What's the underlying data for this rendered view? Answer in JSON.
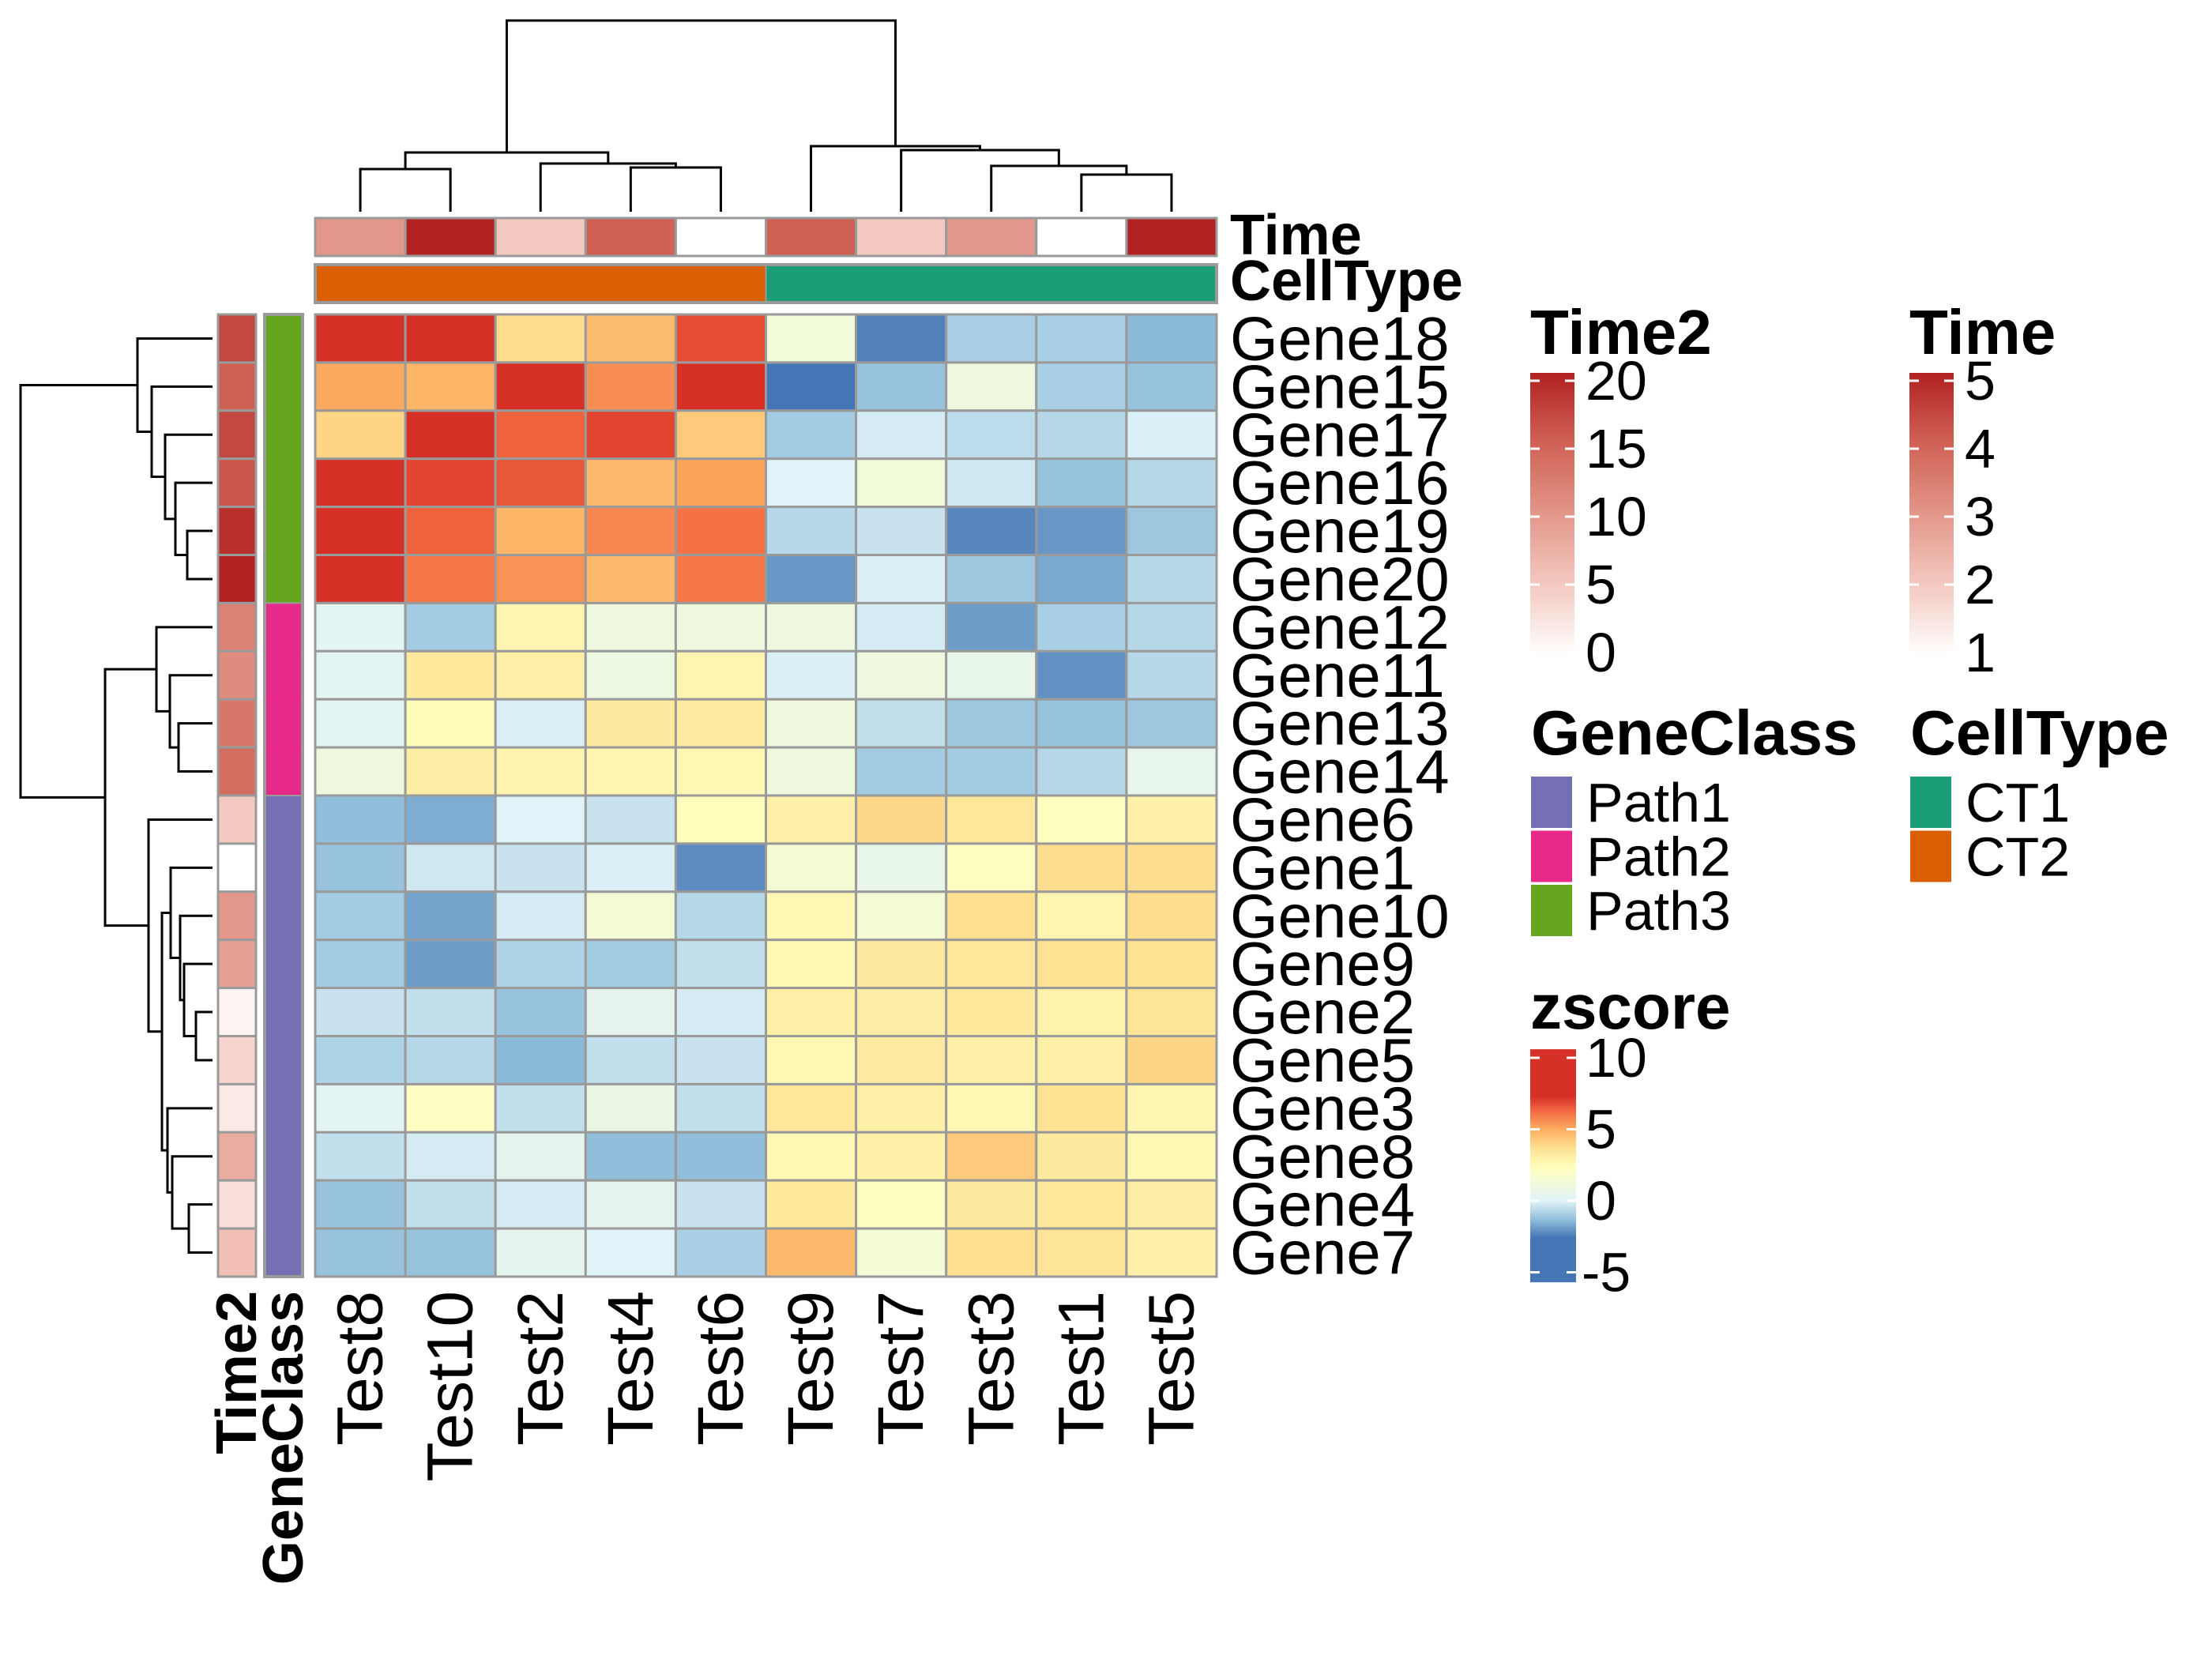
{
  "chart_data": {
    "type": "heatmap",
    "rows": [
      "Gene18",
      "Gene15",
      "Gene17",
      "Gene16",
      "Gene19",
      "Gene20",
      "Gene12",
      "Gene11",
      "Gene13",
      "Gene14",
      "Gene6",
      "Gene1",
      "Gene10",
      "Gene9",
      "Gene2",
      "Gene5",
      "Gene3",
      "Gene8",
      "Gene4",
      "Gene7"
    ],
    "columns": [
      "Test8",
      "Test10",
      "Test2",
      "Test4",
      "Test6",
      "Test9",
      "Test7",
      "Test3",
      "Test1",
      "Test5"
    ],
    "values": [
      [
        9,
        9,
        3.75,
        4.6,
        6.8,
        1.25,
        -2.4,
        -0.9,
        -0.9,
        -1.4
      ],
      [
        5.1,
        4.8,
        9,
        5.6,
        7.4,
        -3.5,
        -1.2,
        1,
        -0.9,
        -1.2
      ],
      [
        4,
        7.5,
        6.4,
        6.9,
        4.3,
        -1,
        -0.2,
        -0.6,
        -0.7,
        -0.1
      ],
      [
        8.2,
        6.9,
        6.6,
        4.7,
        5.2,
        0,
        1.25,
        -0.3,
        -1.2,
        -0.7
      ],
      [
        9,
        6.4,
        4.8,
        5.7,
        6.1,
        -0.7,
        -0.4,
        -2.3,
        -2,
        -1.1
      ],
      [
        7.4,
        6,
        5.5,
        4.7,
        6,
        -2,
        -0.1,
        -1.1,
        -1.7,
        -0.7
      ],
      [
        0.25,
        -1,
        2.75,
        1,
        1.1,
        1,
        -0.2,
        -1.9,
        -0.9,
        -0.7
      ],
      [
        0.25,
        3.3,
        3,
        0.9,
        2.75,
        -0.1,
        1,
        0.6,
        -2.1,
        -0.7
      ],
      [
        0.25,
        2.5,
        -0.1,
        3.25,
        3.2,
        1.1,
        -0.5,
        -1.1,
        -1.2,
        -1.1
      ],
      [
        1,
        3.1,
        2.8,
        2.75,
        2.6,
        1.1,
        -1,
        -1,
        -0.7,
        0.5
      ],
      [
        -1.3,
        -1.6,
        0,
        -0.4,
        2.4,
        3,
        3.9,
        3.4,
        2.25,
        3
      ],
      [
        -1.2,
        -0.3,
        -0.4,
        -0.1,
        -2.2,
        1.5,
        0.6,
        2.25,
        3.75,
        3.75
      ],
      [
        -1,
        -1.8,
        -0.2,
        1.4,
        -0.7,
        2.6,
        1.4,
        3.7,
        2.75,
        3.75
      ],
      [
        -1,
        -1.9,
        -0.8,
        -1,
        -0.5,
        2.6,
        3.25,
        3.4,
        3.6,
        3.6
      ],
      [
        -0.4,
        -0.5,
        -1.2,
        0.4,
        -0.2,
        3,
        3.1,
        3.3,
        2.9,
        3.5
      ],
      [
        -0.8,
        -0.7,
        -1.4,
        -0.5,
        -0.4,
        2.6,
        3.2,
        3,
        3,
        4
      ],
      [
        0.25,
        2.1,
        -0.5,
        0.75,
        -0.5,
        3.4,
        3,
        2.6,
        3.6,
        2.7
      ],
      [
        -0.5,
        -0.2,
        0.4,
        -1.3,
        -1.3,
        2.6,
        3,
        4.3,
        3.25,
        2.6
      ],
      [
        -1.2,
        -0.5,
        -0.2,
        0.4,
        -0.4,
        3.3,
        2.25,
        3.25,
        3.4,
        3.1
      ],
      [
        -1.2,
        -1.2,
        0.4,
        0,
        -0.9,
        4.7,
        1.4,
        3.7,
        3.5,
        3
      ]
    ],
    "column_annotations": {
      "Time": [
        3,
        5,
        2,
        4,
        1,
        4,
        2,
        3,
        1,
        5
      ],
      "CellType": [
        "CT2",
        "CT2",
        "CT2",
        "CT2",
        "CT2",
        "CT1",
        "CT1",
        "CT1",
        "CT1",
        "CT1"
      ]
    },
    "row_annotations": {
      "Time2": [
        17,
        15,
        17,
        16,
        19,
        20,
        12,
        11,
        13,
        14,
        5,
        0,
        10,
        9,
        1,
        4,
        2,
        8,
        3,
        6
      ],
      "GeneClass": [
        "Path3",
        "Path3",
        "Path3",
        "Path3",
        "Path3",
        "Path3",
        "Path2",
        "Path2",
        "Path2",
        "Path2",
        "Path1",
        "Path1",
        "Path1",
        "Path1",
        "Path1",
        "Path1",
        "Path1",
        "Path1",
        "Path1",
        "Path1"
      ]
    },
    "row_dendrogram": true,
    "column_dendrogram": true,
    "annotation_labels": {
      "col": [
        "Time",
        "CellType"
      ],
      "row": [
        "Time2",
        "GeneClass"
      ]
    },
    "legends": {
      "zscore": {
        "title": "zscore",
        "ticks": [
          "10",
          "5",
          "0",
          "-5"
        ],
        "tick_values": [
          10,
          5,
          0,
          -5
        ],
        "colors": [
          "#4575B4",
          "#91BFDB",
          "#E0F3F8",
          "#FFFFBF",
          "#FEE090",
          "#FDAE61",
          "#F46D43",
          "#D73027"
        ]
      },
      "Time2": {
        "title": "Time2",
        "ticks": [
          "20",
          "15",
          "10",
          "5",
          "0"
        ],
        "tick_values": [
          20,
          15,
          10,
          5,
          0
        ],
        "low": "#FFFFFF",
        "high": "#B22222"
      },
      "Time": {
        "title": "Time",
        "ticks": [
          "5",
          "4",
          "3",
          "2",
          "1"
        ],
        "tick_values": [
          5,
          4,
          3,
          2,
          1
        ],
        "low": "#FFFFFF",
        "high": "#B22222"
      },
      "GeneClass": {
        "title": "GeneClass",
        "items": [
          {
            "label": "Path1",
            "color": "#7570B3"
          },
          {
            "label": "Path2",
            "color": "#E7298A"
          },
          {
            "label": "Path3",
            "color": "#66A61E"
          }
        ]
      },
      "CellType": {
        "title": "CellType",
        "items": [
          {
            "label": "CT1",
            "color": "#1B9E77"
          },
          {
            "label": "CT2",
            "color": "#D95F02"
          }
        ]
      }
    }
  }
}
